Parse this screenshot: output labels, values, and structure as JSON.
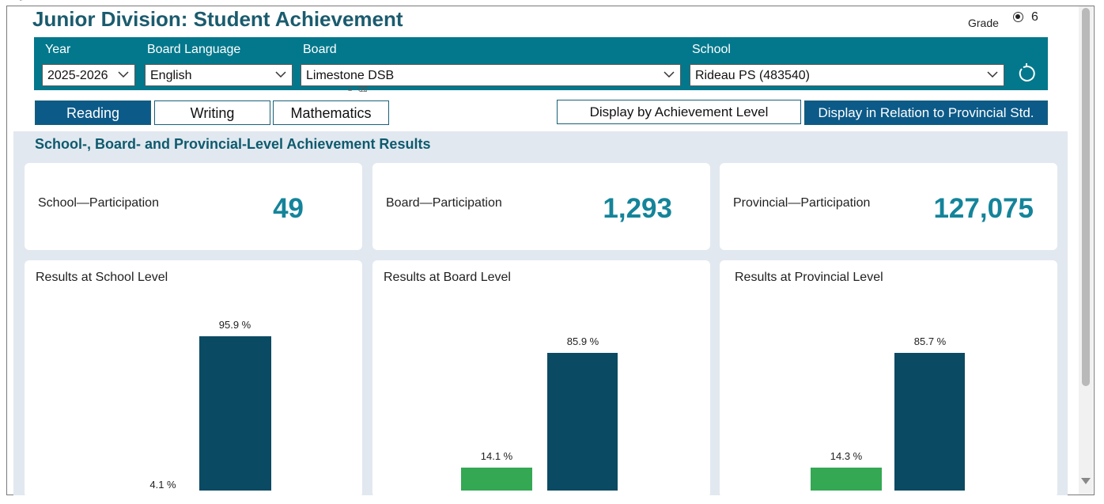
{
  "header": {
    "title": "Junior Division: Student Achievement"
  },
  "grade": {
    "label": "Grade",
    "value": "6"
  },
  "filters": {
    "year": {
      "label": "Year",
      "value": "2025-2026"
    },
    "language": {
      "label": "Board Language",
      "value": "English"
    },
    "board": {
      "label": "Board",
      "value": "Limestone DSB"
    },
    "school": {
      "label": "School",
      "value": "Rideau PS (483540)"
    }
  },
  "tabs": [
    {
      "label": "Reading",
      "active": true
    },
    {
      "label": "Writing",
      "active": false
    },
    {
      "label": "Mathematics",
      "active": false
    }
  ],
  "display": {
    "by_level": "Display by Achievement Level",
    "relation": "Display in Relation to Provincial Std."
  },
  "section_title": "School-, Board- and Provincial-Level Achievement Results",
  "participation": {
    "school": {
      "label": "School—Participation",
      "value": "49"
    },
    "board": {
      "label": "Board—Participation",
      "value": "1,293"
    },
    "provincial": {
      "label": "Provincial—Participation",
      "value": "127,075"
    }
  },
  "colors": {
    "accent": "#03788c",
    "below": "#34a853",
    "at_or_above": "#0b4a63",
    "active_tab": "#0c5a88"
  },
  "chart_data": [
    {
      "type": "bar",
      "title": "Results at School Level",
      "values": [
        4.1,
        95.9
      ],
      "labels": [
        "4.1 %",
        "95.9 %"
      ]
    },
    {
      "type": "bar",
      "title": "Results at Board Level",
      "values": [
        14.1,
        85.9
      ],
      "labels": [
        "14.1 %",
        "85.9 %"
      ]
    },
    {
      "type": "bar",
      "title": "Results at Provincial Level",
      "values": [
        14.3,
        85.7
      ],
      "labels": [
        "14.3 %",
        "85.7 %"
      ]
    }
  ]
}
